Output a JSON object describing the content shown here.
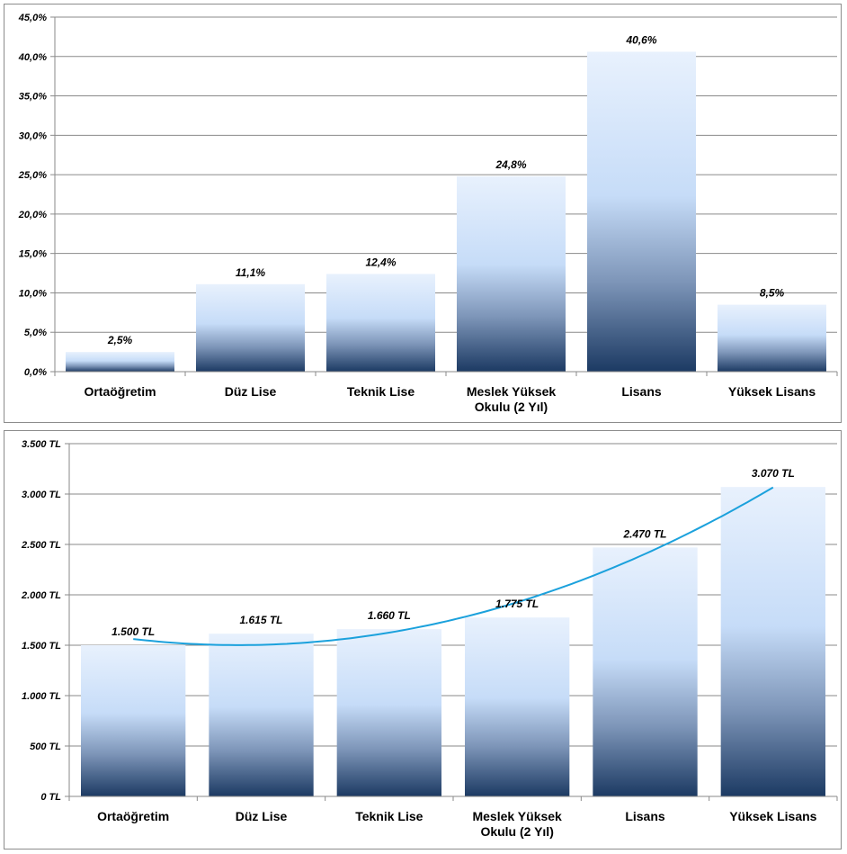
{
  "chart_data": [
    {
      "type": "bar",
      "title": "",
      "xlabel": "",
      "ylabel": "",
      "categories": [
        [
          "Ortaöğretim"
        ],
        [
          "Düz Lise"
        ],
        [
          "Teknik Lise"
        ],
        [
          "Meslek Yüksek",
          "Okulu (2 Yıl)"
        ],
        [
          "Lisans"
        ],
        [
          "Yüksek Lisans"
        ]
      ],
      "values": [
        2.5,
        11.1,
        12.4,
        24.8,
        40.6,
        8.5
      ],
      "value_labels": [
        "2,5%",
        "11,1%",
        "12,4%",
        "24,8%",
        "40,6%",
        "8,5%"
      ],
      "ylim": [
        0,
        45
      ],
      "yticks": [
        0,
        5,
        10,
        15,
        20,
        25,
        30,
        35,
        40,
        45
      ],
      "ytick_labels": [
        "0,0%",
        "5,0%",
        "10,0%",
        "15,0%",
        "20,0%",
        "25,0%",
        "30,0%",
        "35,0%",
        "40,0%",
        "45,0%"
      ],
      "grid": true,
      "legend": "none",
      "bar_gradient": [
        "#e8f1fd",
        "#c6dcf8",
        "#7d95b8",
        "#1c3a63"
      ]
    },
    {
      "type": "bar",
      "title": "",
      "xlabel": "",
      "ylabel": "",
      "categories": [
        [
          "Ortaöğretim"
        ],
        [
          "Düz Lise"
        ],
        [
          "Teknik Lise"
        ],
        [
          "Meslek Yüksek",
          "Okulu (2 Yıl)"
        ],
        [
          "Lisans"
        ],
        [
          "Yüksek Lisans"
        ]
      ],
      "values": [
        1500,
        1615,
        1660,
        1775,
        2470,
        3070
      ],
      "value_labels": [
        "1.500 TL",
        "1.615 TL",
        "1.660 TL",
        "1.775 TL",
        "2.470 TL",
        "3.070 TL"
      ],
      "ylim": [
        0,
        3500
      ],
      "yticks": [
        0,
        500,
        1000,
        1500,
        2000,
        2500,
        3000,
        3500
      ],
      "ytick_labels": [
        "0 TL",
        "500 TL",
        "1.000 TL",
        "1.500 TL",
        "2.000 TL",
        "2.500 TL",
        "3.000 TL",
        "3.500 TL"
      ],
      "grid": true,
      "legend": "none",
      "trendline": {
        "type": "polynomial",
        "order": 2,
        "color": "#1ba1dc"
      },
      "bar_gradient": [
        "#e8f1fd",
        "#c6dcf8",
        "#7d95b8",
        "#1c3a63"
      ]
    }
  ]
}
